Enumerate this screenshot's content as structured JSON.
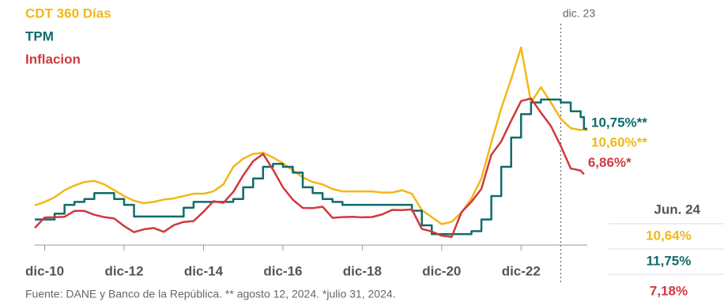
{
  "chart_data": {
    "type": "line",
    "x": [
      "2010-09",
      "2010-12",
      "2011-03",
      "2011-06",
      "2011-09",
      "2011-12",
      "2012-03",
      "2012-06",
      "2012-09",
      "2012-12",
      "2013-03",
      "2013-06",
      "2013-09",
      "2013-12",
      "2014-03",
      "2014-06",
      "2014-09",
      "2014-12",
      "2015-03",
      "2015-06",
      "2015-09",
      "2015-12",
      "2016-03",
      "2016-06",
      "2016-09",
      "2016-12",
      "2017-03",
      "2017-06",
      "2017-09",
      "2017-12",
      "2018-03",
      "2018-06",
      "2018-09",
      "2018-12",
      "2019-03",
      "2019-06",
      "2019-09",
      "2019-12",
      "2020-03",
      "2020-06",
      "2020-09",
      "2020-12",
      "2021-03",
      "2021-06",
      "2021-09",
      "2021-12",
      "2022-03",
      "2022-06",
      "2022-09",
      "2022-12",
      "2023-03",
      "2023-06",
      "2023-09",
      "2023-12",
      "2024-03",
      "2024-06",
      "2024-07",
      "2024-08"
    ],
    "series": [
      {
        "name": "CDT 360 Días",
        "color": "#f2b817",
        "end_label": "10,60%**",
        "values": [
          4.2,
          4.5,
          4.9,
          5.5,
          5.9,
          6.2,
          6.3,
          6.0,
          5.5,
          5.0,
          4.6,
          4.4,
          4.5,
          4.7,
          4.8,
          5.0,
          5.2,
          5.2,
          5.4,
          6.0,
          7.5,
          8.2,
          8.6,
          8.7,
          8.3,
          7.8,
          7.2,
          6.6,
          6.2,
          6.0,
          5.6,
          5.4,
          5.4,
          5.4,
          5.4,
          5.3,
          5.3,
          5.5,
          5.2,
          3.8,
          3.2,
          2.6,
          2.8,
          3.6,
          4.8,
          6.5,
          9.6,
          12.5,
          15.0,
          17.7,
          13.0,
          14.3,
          13.0,
          11.6,
          10.8,
          10.64,
          10.7,
          10.6
        ]
      },
      {
        "name": "TPM",
        "color": "#116b6b",
        "step": true,
        "end_label": "10,75%**",
        "values": [
          3.0,
          3.0,
          3.5,
          4.25,
          4.5,
          4.75,
          5.25,
          5.25,
          4.75,
          4.25,
          3.25,
          3.25,
          3.25,
          3.25,
          3.25,
          4.0,
          4.5,
          4.5,
          4.5,
          4.5,
          4.75,
          5.75,
          6.5,
          7.5,
          7.75,
          7.5,
          7.0,
          5.75,
          5.25,
          4.75,
          4.5,
          4.25,
          4.25,
          4.25,
          4.25,
          4.25,
          4.25,
          4.25,
          3.75,
          2.5,
          1.75,
          1.75,
          1.75,
          1.75,
          2.0,
          3.0,
          5.0,
          7.5,
          10.0,
          12.0,
          13.0,
          13.25,
          13.25,
          13.0,
          12.25,
          11.75,
          10.75,
          10.75
        ]
      },
      {
        "name": "Inflacion",
        "color": "#d0393e",
        "end_label": "6,86%*",
        "values": [
          2.28,
          3.17,
          3.19,
          3.23,
          3.73,
          3.73,
          3.4,
          3.2,
          3.08,
          2.44,
          1.91,
          2.16,
          2.27,
          1.94,
          2.51,
          2.79,
          2.86,
          3.66,
          4.56,
          4.42,
          5.35,
          6.77,
          7.98,
          8.6,
          7.27,
          5.75,
          4.69,
          3.99,
          3.97,
          4.09,
          3.14,
          3.2,
          3.23,
          3.18,
          3.21,
          3.43,
          3.82,
          3.8,
          3.86,
          2.19,
          1.97,
          1.61,
          1.51,
          3.63,
          4.51,
          5.62,
          8.53,
          9.67,
          11.44,
          13.12,
          13.34,
          12.13,
          10.99,
          9.28,
          7.36,
          7.18,
          6.86,
          null
        ]
      }
    ],
    "xlim": [
      "2010-09",
      "2024-08"
    ],
    "xticks": [
      {
        "value": "2010-12",
        "label": "dic-10"
      },
      {
        "value": "2012-12",
        "label": "dic-12"
      },
      {
        "value": "2014-12",
        "label": "dic-14"
      },
      {
        "value": "2016-12",
        "label": "dic-16"
      },
      {
        "value": "2018-12",
        "label": "dic-18"
      },
      {
        "value": "2020-12",
        "label": "dic-20"
      },
      {
        "value": "2022-12",
        "label": "dic-22"
      }
    ],
    "ylim": [
      0,
      20
    ],
    "annotation": {
      "x": "2023-12",
      "label": "dic. 23"
    },
    "table": {
      "header": "Jun. 24",
      "rows": [
        "10,64%",
        "11,75%",
        "7,18%"
      ]
    },
    "source": "Fuente: DANE y Banco de la República. ** agosto 12, 2024. *julio 31, 2024."
  }
}
